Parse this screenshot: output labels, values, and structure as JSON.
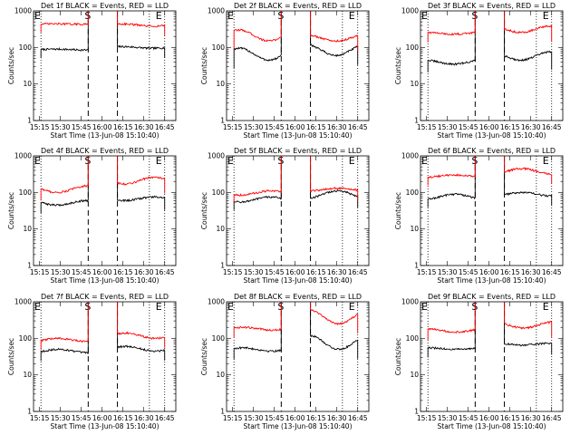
{
  "figure": {
    "x_axis_label": "Start Time (13-Jun-08 15:10:40)",
    "y_axis_label": "Counts/sec",
    "x_tick_labels": [
      "15:15",
      "15:30",
      "15:45",
      "16:00",
      "16:15",
      "16:30",
      "16:45"
    ],
    "y_tick_labels": [
      "1",
      "10",
      "100",
      "1000"
    ],
    "colors": {
      "events": "#000000",
      "lld": "#ff0000"
    },
    "marker_labels": {
      "start": "E",
      "saa": "S",
      "end": "E"
    }
  },
  "chart_data": [
    {
      "type": "line",
      "title": "Det 1f BLACK = Events, RED = LLD",
      "xlabel": "Start Time (13-Jun-08 15:10:40)",
      "ylabel": "Counts/sec",
      "yscale": "log",
      "ylim": [
        1,
        1000
      ],
      "xlim": [
        "15:10:40",
        "16:53:00"
      ],
      "x_ticks": [
        "15:15",
        "15:30",
        "15:45",
        "16:00",
        "16:15",
        "16:30",
        "16:45"
      ],
      "vlines_dotted": [
        "15:16",
        "16:34",
        "16:45"
      ],
      "vlines_dashed": [
        "15:50",
        "16:11"
      ],
      "gap": [
        "15:50",
        "16:11"
      ],
      "series": [
        {
          "name": "Events",
          "color": "#000000",
          "values_before_gap": [
            85,
            90
          ],
          "values_after_gap": [
            95,
            105
          ]
        },
        {
          "name": "LLD",
          "color": "#ff0000",
          "values_before_gap": [
            430,
            440
          ],
          "values_after_gap": [
            380,
            440
          ]
        }
      ]
    },
    {
      "type": "line",
      "title": "Det 2f BLACK = Events, RED = LLD",
      "xlabel": "Start Time (13-Jun-08 15:10:40)",
      "ylabel": "Counts/sec",
      "yscale": "log",
      "ylim": [
        1,
        1000
      ],
      "xlim": [
        "15:10:40",
        "16:53:00"
      ],
      "x_ticks": [
        "15:15",
        "15:30",
        "15:45",
        "16:00",
        "16:15",
        "16:30",
        "16:45"
      ],
      "vlines_dotted": [
        "15:16",
        "16:34",
        "16:45"
      ],
      "vlines_dashed": [
        "15:50",
        "16:11"
      ],
      "gap": [
        "15:50",
        "16:11"
      ],
      "series": [
        {
          "name": "Events",
          "color": "#000000",
          "values_before_gap": [
            45,
            95
          ],
          "values_after_gap": [
            60,
            120
          ]
        },
        {
          "name": "LLD",
          "color": "#ff0000",
          "values_before_gap": [
            150,
            300
          ],
          "values_after_gap": [
            150,
            220
          ]
        }
      ]
    },
    {
      "type": "line",
      "title": "Det 3f BLACK = Events, RED = LLD",
      "xlabel": "Start Time (13-Jun-08 15:10:40)",
      "ylabel": "Counts/sec",
      "yscale": "log",
      "ylim": [
        1,
        1000
      ],
      "xlim": [
        "15:10:40",
        "16:53:00"
      ],
      "x_ticks": [
        "15:15",
        "15:30",
        "15:45",
        "16:00",
        "16:15",
        "16:30",
        "16:45"
      ],
      "vlines_dotted": [
        "15:16",
        "16:34",
        "16:45"
      ],
      "vlines_dashed": [
        "15:50",
        "16:11"
      ],
      "gap": [
        "15:50",
        "16:11"
      ],
      "series": [
        {
          "name": "Events",
          "color": "#000000",
          "values_before_gap": [
            35,
            45
          ],
          "values_after_gap": [
            45,
            75
          ]
        },
        {
          "name": "LLD",
          "color": "#ff0000",
          "values_before_gap": [
            230,
            260
          ],
          "values_after_gap": [
            260,
            380
          ]
        }
      ]
    },
    {
      "type": "line",
      "title": "Det 4f BLACK = Events, RED = LLD",
      "xlabel": "Start Time (13-Jun-08 15:10:40)",
      "ylabel": "Counts/sec",
      "yscale": "log",
      "ylim": [
        1,
        1000
      ],
      "xlim": [
        "15:10:40",
        "16:53:00"
      ],
      "x_ticks": [
        "15:15",
        "15:30",
        "15:45",
        "16:00",
        "16:15",
        "16:30",
        "16:45"
      ],
      "vlines_dotted": [
        "15:16",
        "16:34",
        "16:45"
      ],
      "vlines_dashed": [
        "15:50",
        "16:11"
      ],
      "gap": [
        "15:50",
        "16:11"
      ],
      "series": [
        {
          "name": "Events",
          "color": "#000000",
          "values_before_gap": [
            45,
            60
          ],
          "values_after_gap": [
            60,
            75
          ]
        },
        {
          "name": "LLD",
          "color": "#ff0000",
          "values_before_gap": [
            100,
            150
          ],
          "values_after_gap": [
            170,
            260
          ]
        }
      ]
    },
    {
      "type": "line",
      "title": "Det 5f BLACK = Events, RED = LLD",
      "xlabel": "Start Time (13-Jun-08 15:10:40)",
      "ylabel": "Counts/sec",
      "yscale": "log",
      "ylim": [
        1,
        1000
      ],
      "xlim": [
        "15:10:40",
        "16:53:00"
      ],
      "x_ticks": [
        "15:15",
        "15:30",
        "15:45",
        "16:00",
        "16:15",
        "16:30",
        "16:45"
      ],
      "vlines_dotted": [
        "15:16",
        "16:34",
        "16:45"
      ],
      "vlines_dashed": [
        "15:50",
        "16:11"
      ],
      "gap": [
        "15:50",
        "16:11"
      ],
      "series": [
        {
          "name": "Events",
          "color": "#000000",
          "values_before_gap": [
            55,
            75
          ],
          "values_after_gap": [
            70,
            110
          ]
        },
        {
          "name": "LLD",
          "color": "#ff0000",
          "values_before_gap": [
            85,
            110
          ],
          "values_after_gap": [
            110,
            130
          ]
        }
      ]
    },
    {
      "type": "line",
      "title": "Det 6f BLACK = Events, RED = LLD",
      "xlabel": "Start Time (13-Jun-08 15:10:40)",
      "ylabel": "Counts/sec",
      "yscale": "log",
      "ylim": [
        1,
        1000
      ],
      "xlim": [
        "15:10:40",
        "16:53:00"
      ],
      "x_ticks": [
        "15:15",
        "15:30",
        "15:45",
        "16:00",
        "16:15",
        "16:30",
        "16:45"
      ],
      "vlines_dotted": [
        "15:16",
        "16:34",
        "16:45"
      ],
      "vlines_dashed": [
        "15:50",
        "16:11"
      ],
      "gap": [
        "15:50",
        "16:11"
      ],
      "series": [
        {
          "name": "Events",
          "color": "#000000",
          "values_before_gap": [
            65,
            90
          ],
          "values_after_gap": [
            80,
            100
          ]
        },
        {
          "name": "LLD",
          "color": "#ff0000",
          "values_before_gap": [
            260,
            300
          ],
          "values_after_gap": [
            320,
            450
          ]
        }
      ]
    },
    {
      "type": "line",
      "title": "Det 7f BLACK = Events, RED = LLD",
      "xlabel": "Start Time (13-Jun-08 15:10:40)",
      "ylabel": "Counts/sec",
      "yscale": "log",
      "ylim": [
        1,
        1000
      ],
      "xlim": [
        "15:10:40",
        "16:53:00"
      ],
      "x_ticks": [
        "15:15",
        "15:30",
        "15:45",
        "16:00",
        "16:15",
        "16:30",
        "16:45"
      ],
      "vlines_dotted": [
        "15:16",
        "16:34",
        "16:45"
      ],
      "vlines_dashed": [
        "15:50",
        "16:11"
      ],
      "gap": [
        "15:50",
        "16:11"
      ],
      "series": [
        {
          "name": "Events",
          "color": "#000000",
          "values_before_gap": [
            40,
            50
          ],
          "values_after_gap": [
            45,
            60
          ]
        },
        {
          "name": "LLD",
          "color": "#ff0000",
          "values_before_gap": [
            80,
            100
          ],
          "values_after_gap": [
            100,
            140
          ]
        }
      ]
    },
    {
      "type": "line",
      "title": "Det 8f BLACK = Events, RED = LLD",
      "xlabel": "Start Time (13-Jun-08 15:10:40)",
      "ylabel": "Counts/sec",
      "yscale": "log",
      "ylim": [
        1,
        1000
      ],
      "xlim": [
        "15:10:40",
        "16:53:00"
      ],
      "x_ticks": [
        "15:15",
        "15:30",
        "15:45",
        "16:00",
        "16:15",
        "16:30",
        "16:45"
      ],
      "vlines_dotted": [
        "15:16",
        "16:34",
        "16:45"
      ],
      "vlines_dashed": [
        "15:50",
        "16:11"
      ],
      "gap": [
        "15:50",
        "16:11"
      ],
      "series": [
        {
          "name": "Events",
          "color": "#000000",
          "values_before_gap": [
            45,
            55
          ],
          "values_after_gap": [
            50,
            120
          ]
        },
        {
          "name": "LLD",
          "color": "#ff0000",
          "values_before_gap": [
            170,
            200
          ],
          "values_after_gap": [
            250,
            600
          ]
        }
      ]
    },
    {
      "type": "line",
      "title": "Det 9f BLACK = Events, RED = LLD",
      "xlabel": "Start Time (13-Jun-08 15:10:40)",
      "ylabel": "Counts/sec",
      "yscale": "log",
      "ylim": [
        1,
        1000
      ],
      "xlim": [
        "15:10:40",
        "16:53:00"
      ],
      "x_ticks": [
        "15:15",
        "15:30",
        "15:45",
        "16:00",
        "16:15",
        "16:30",
        "16:45"
      ],
      "vlines_dotted": [
        "15:16",
        "16:34",
        "16:45"
      ],
      "vlines_dashed": [
        "15:50",
        "16:11"
      ],
      "gap": [
        "15:50",
        "16:11"
      ],
      "series": [
        {
          "name": "Events",
          "color": "#000000",
          "values_before_gap": [
            50,
            55
          ],
          "values_after_gap": [
            65,
            75
          ]
        },
        {
          "name": "LLD",
          "color": "#ff0000",
          "values_before_gap": [
            150,
            180
          ],
          "values_after_gap": [
            190,
            280
          ]
        }
      ]
    }
  ]
}
